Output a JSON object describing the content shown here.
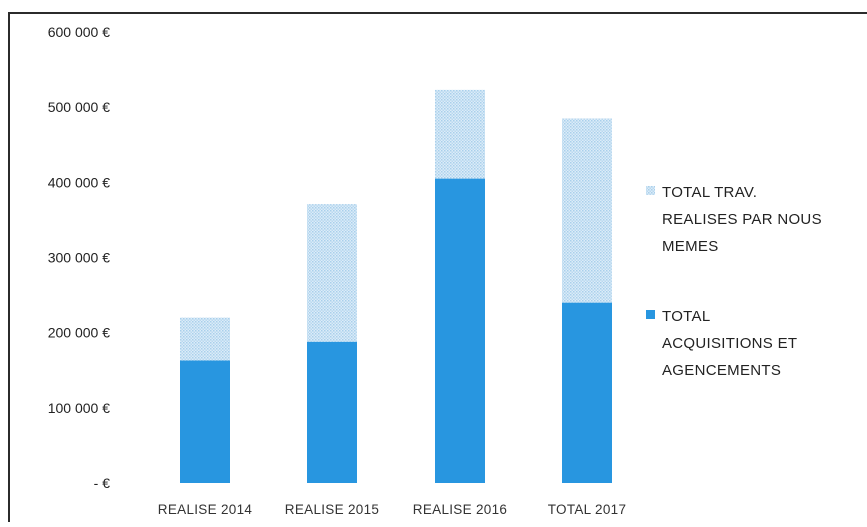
{
  "chart_data": {
    "type": "bar",
    "stacked": true,
    "categories": [
      "REALISE 2014",
      "REALISE 2015",
      "REALISE 2016",
      "TOTAL 2017"
    ],
    "series": [
      {
        "name": "TOTAL ACQUISITIONS ET AGENCEMENTS",
        "name_lines": [
          "TOTAL",
          "ACQUISITIONS ET",
          "AGENCEMENTS"
        ],
        "color": "#2896e0",
        "pattern": "solid",
        "values": [
          163000,
          188000,
          405000,
          240000
        ]
      },
      {
        "name": "TOTAL TRAV. REALISES PAR NOUS MEMES",
        "name_lines": [
          "TOTAL TRAV.",
          "REALISES PAR NOUS",
          "MEMES"
        ],
        "color": "#c8e2f5",
        "pattern": "dotted",
        "values": [
          57000,
          183000,
          118000,
          245000
        ]
      }
    ],
    "ylim": [
      0,
      600000
    ],
    "yticks": [
      {
        "value": 0,
        "label": "-   €"
      },
      {
        "value": 100000,
        "label": "100 000 €"
      },
      {
        "value": 200000,
        "label": "200 000 €"
      },
      {
        "value": 300000,
        "label": "300 000 €"
      },
      {
        "value": 400000,
        "label": "400 000 €"
      },
      {
        "value": 500000,
        "label": "500 000 €"
      },
      {
        "value": 600000,
        "label": "600 000 €"
      }
    ],
    "legend_order": [
      1,
      0
    ],
    "legend_position": "right",
    "grid": false,
    "title": "",
    "xlabel": "",
    "ylabel": ""
  }
}
